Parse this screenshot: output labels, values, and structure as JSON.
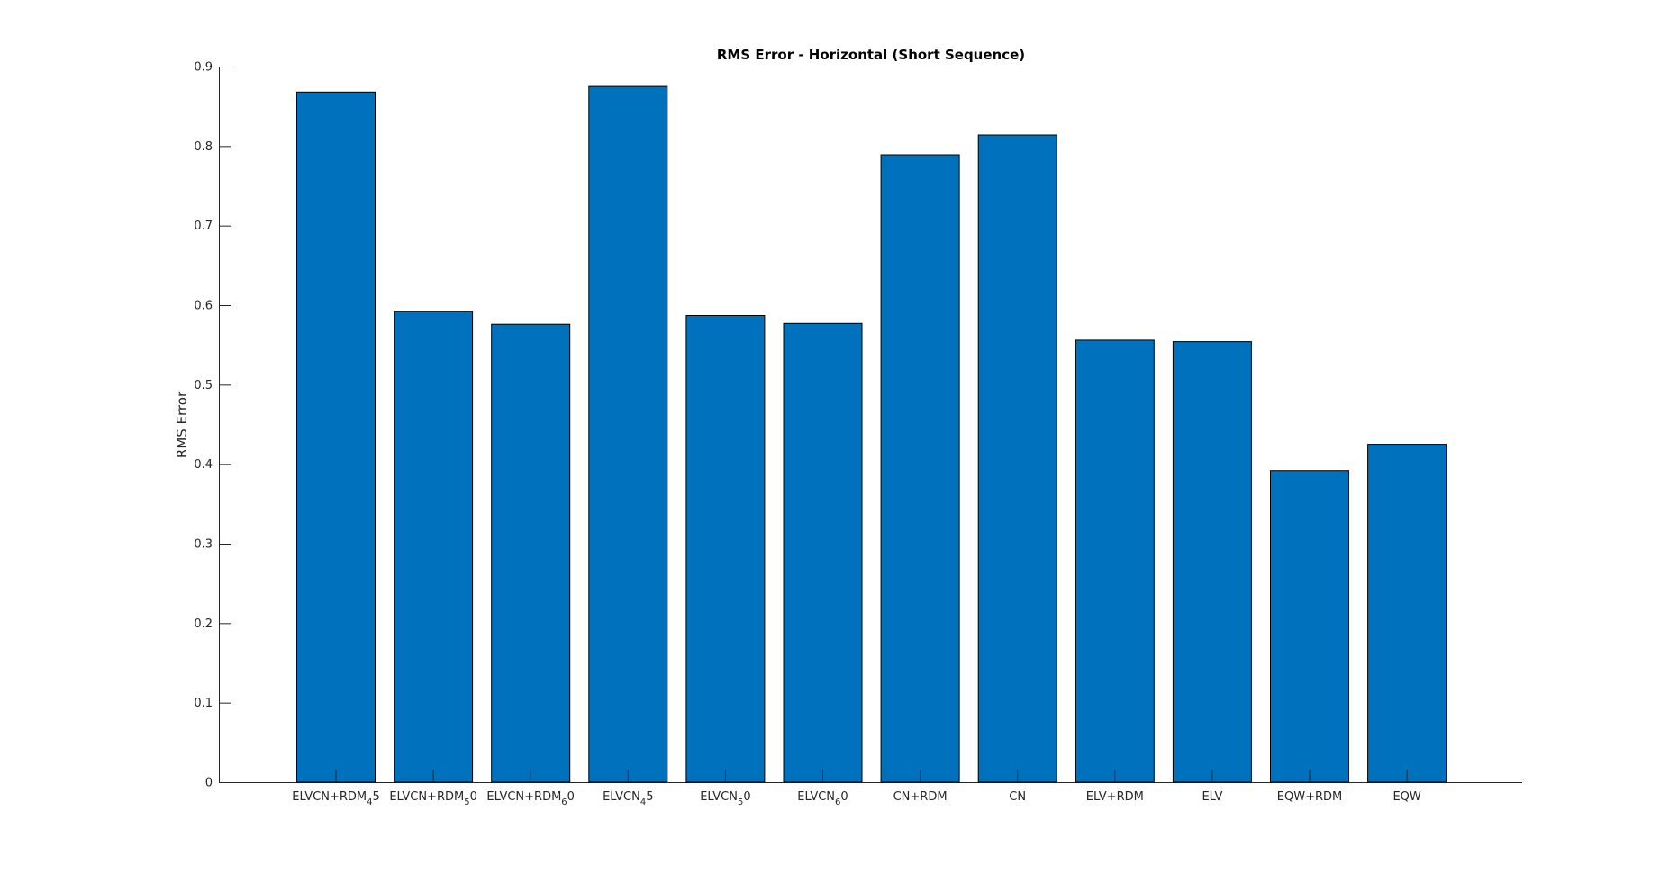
{
  "chart_data": {
    "type": "bar",
    "title": "RMS Error - Horizontal (Short Sequence)",
    "xlabel": "",
    "ylabel": "RMS Error",
    "ylim": [
      0,
      0.9
    ],
    "yticks": [
      "0",
      "0.1",
      "0.2",
      "0.3",
      "0.4",
      "0.5",
      "0.6",
      "0.7",
      "0.8",
      "0.9"
    ],
    "grid": false,
    "bar_color": "#0072BD",
    "categories": [
      {
        "main": "ELVCN+RDM",
        "sub": "4",
        "tail": "5"
      },
      {
        "main": "ELVCN+RDM",
        "sub": "5",
        "tail": "0"
      },
      {
        "main": "ELVCN+RDM",
        "sub": "6",
        "tail": "0"
      },
      {
        "main": "ELVCN",
        "sub": "4",
        "tail": "5"
      },
      {
        "main": "ELVCN",
        "sub": "5",
        "tail": "0"
      },
      {
        "main": "ELVCN",
        "sub": "6",
        "tail": "0"
      },
      {
        "main": "CN+RDM",
        "sub": "",
        "tail": ""
      },
      {
        "main": "CN",
        "sub": "",
        "tail": ""
      },
      {
        "main": "ELV+RDM",
        "sub": "",
        "tail": ""
      },
      {
        "main": "ELV",
        "sub": "",
        "tail": ""
      },
      {
        "main": "EQW+RDM",
        "sub": "",
        "tail": ""
      },
      {
        "main": "EQW",
        "sub": "",
        "tail": ""
      }
    ],
    "values": [
      0.868,
      0.592,
      0.576,
      0.875,
      0.587,
      0.577,
      0.789,
      0.814,
      0.556,
      0.554,
      0.392,
      0.425
    ]
  }
}
